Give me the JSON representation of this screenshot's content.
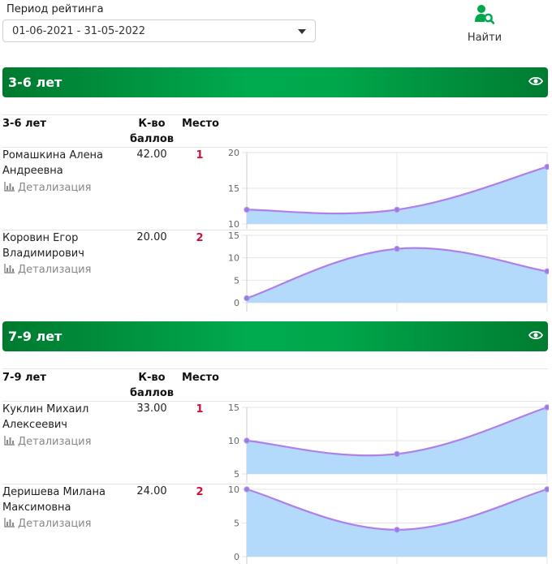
{
  "filter": {
    "period_label": "Период рейтинга",
    "period_value": "01-06-2021 - 31-05-2022",
    "find_label": "Найти"
  },
  "groups": [
    {
      "title": "3-6 лет",
      "headers": {
        "name": "3-6 лет",
        "score_line1": "К-во",
        "score_line2": "баллов",
        "place": "Место"
      },
      "rows": [
        {
          "name_line1": "Ромашкина Алена",
          "name_line2": "Андреевна",
          "detail": "Детализация",
          "score": "42.00",
          "place": "1",
          "chart_data": {
            "type": "area",
            "x": [
              1,
              2,
              3
            ],
            "values": [
              12,
              12,
              18
            ],
            "ylim": [
              10,
              20
            ],
            "yticks": [
              "20",
              "15",
              "10"
            ]
          }
        },
        {
          "name_line1": "Коровин Егор",
          "name_line2": "Владимирович",
          "detail": "Детализация",
          "score": "20.00",
          "place": "2",
          "chart_data": {
            "type": "area",
            "x": [
              1,
              2,
              3
            ],
            "values": [
              1,
              12,
              7
            ],
            "ylim": [
              0,
              15
            ],
            "yticks": [
              "15",
              "10",
              "5",
              "0"
            ]
          }
        }
      ]
    },
    {
      "title": "7-9 лет",
      "headers": {
        "name": "7-9 лет",
        "score_line1": "К-во",
        "score_line2": "баллов",
        "place": "Место"
      },
      "rows": [
        {
          "name_line1": "Куклин Михаил",
          "name_line2": "Алексеевич",
          "detail": "Детализация",
          "score": "33.00",
          "place": "1",
          "chart_data": {
            "type": "area",
            "x": [
              1,
              2,
              3
            ],
            "values": [
              10,
              8,
              15
            ],
            "ylim": [
              5,
              15
            ],
            "yticks": [
              "15",
              "10",
              "5"
            ]
          }
        },
        {
          "name_line1": "Деришева Милана",
          "name_line2": "Максимовна",
          "detail": "Детализация",
          "score": "24.00",
          "place": "2",
          "chart_data": {
            "type": "area",
            "x": [
              1,
              2,
              3
            ],
            "values": [
              10,
              4,
              10
            ],
            "ylim": [
              0,
              10
            ],
            "yticks": [
              "10",
              "5",
              "0"
            ]
          }
        }
      ]
    }
  ],
  "colors": {
    "accent": "#00a84c",
    "place": "#d0113a",
    "area_fill": "#b3d9fb",
    "line": "#b07fe8"
  },
  "icons": {
    "find": "user-search-icon",
    "eye": "eye-icon",
    "detail": "bar-chart-icon"
  }
}
